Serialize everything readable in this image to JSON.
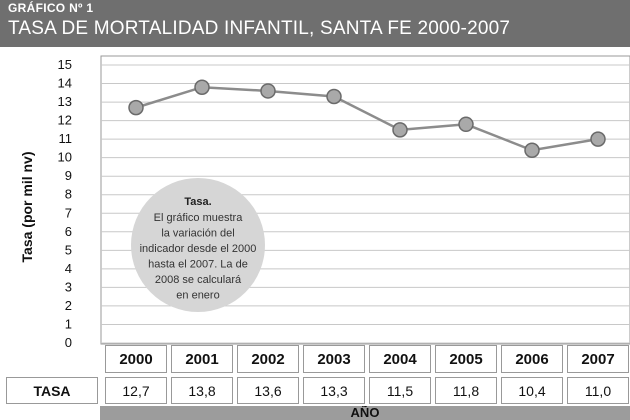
{
  "header": {
    "kicker": "GRÁFICO Nº 1",
    "title": "TASA DE MORTALIDAD INFANTIL, SANTA FE 2000-2007"
  },
  "chart_data": {
    "type": "line",
    "title": "TASA DE MORTALIDAD INFANTIL, SANTA FE 2000-2007",
    "xlabel": "AÑO",
    "ylabel": "Tasa (por mil nv)",
    "categories": [
      "2000",
      "2001",
      "2002",
      "2003",
      "2004",
      "2005",
      "2006",
      "2007"
    ],
    "series": [
      {
        "name": "TASA",
        "values": [
          12.7,
          13.8,
          13.6,
          13.3,
          11.5,
          11.8,
          10.4,
          11.0
        ]
      }
    ],
    "ylim": [
      0,
      15
    ],
    "yticks": [
      0,
      1,
      2,
      3,
      4,
      5,
      6,
      7,
      8,
      9,
      10,
      11,
      12,
      13,
      14,
      15
    ],
    "grid": true,
    "colors": {
      "line": "#8c8c8c",
      "marker": "#a9a9a9",
      "grid": "#c8c8c8",
      "header": "#6f6f6f"
    }
  },
  "table": {
    "row_label": "TASA",
    "values": [
      "12,7",
      "13,8",
      "13,6",
      "13,3",
      "11,5",
      "11,8",
      "10,4",
      "11,0"
    ]
  },
  "callout": {
    "title": "Tasa.",
    "lines": [
      "El gráfico muestra",
      "la variación del",
      "indicador desde el 2000",
      "hasta el 2007. La de",
      "2008 se calculará",
      "en enero"
    ]
  }
}
